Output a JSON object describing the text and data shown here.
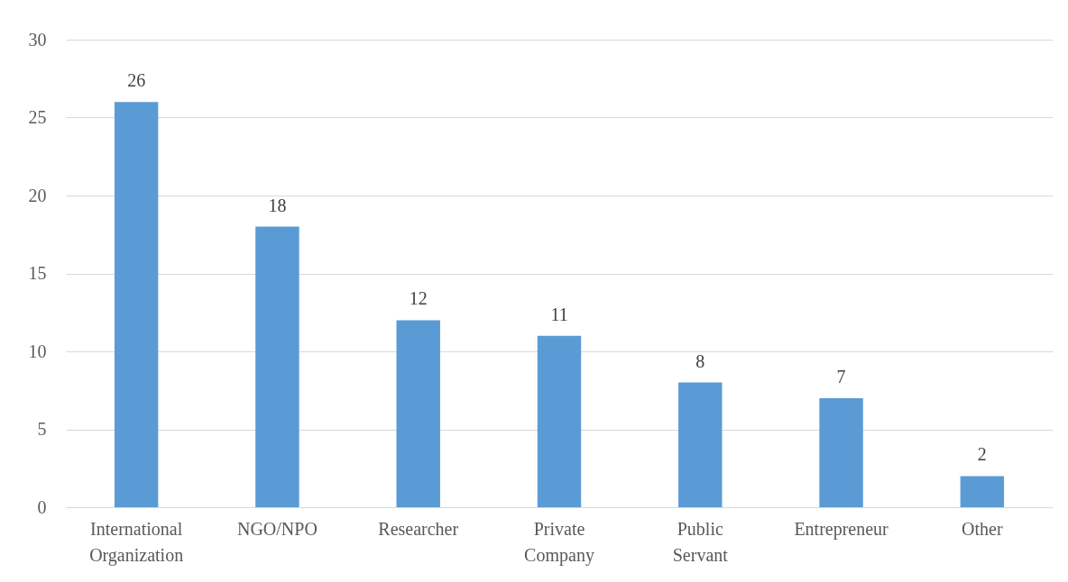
{
  "chart_data": {
    "type": "bar",
    "categories": [
      "International Organization",
      "NGO/NPO",
      "Researcher",
      "Private Company",
      "Public Servant",
      "Entrepreneur",
      "Other"
    ],
    "values": [
      26,
      18,
      12,
      11,
      8,
      7,
      2
    ],
    "color": "#5b9bd5",
    "ylim": [
      0,
      30
    ],
    "yticks": [
      0,
      5,
      10,
      15,
      20,
      25,
      30
    ],
    "grid": "y",
    "data_labels": true
  }
}
